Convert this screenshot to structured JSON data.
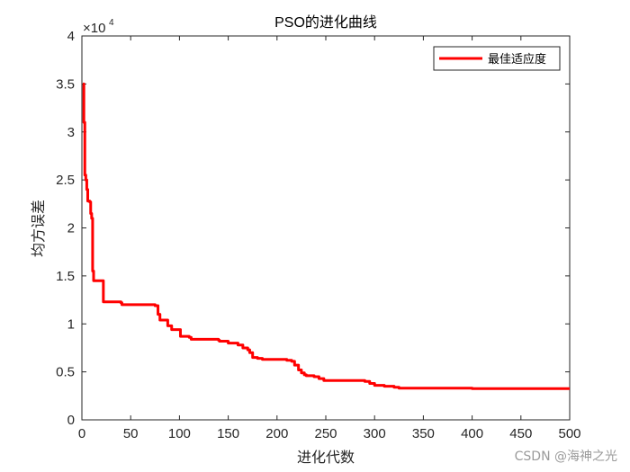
{
  "chart_data": {
    "type": "line",
    "title": "PSO的进化曲线",
    "xlabel": "进化代数",
    "ylabel": "均方误差",
    "xlim": [
      0,
      500
    ],
    "ylim": [
      0,
      40000
    ],
    "xticks": [
      0,
      50,
      100,
      150,
      200,
      250,
      300,
      350,
      400,
      450,
      500
    ],
    "yticks": [
      0,
      0.5,
      1,
      1.5,
      2,
      2.5,
      3,
      3.5,
      4
    ],
    "y_exponent_base": "×10",
    "y_exponent_power": "4",
    "legend_position": "top-right",
    "grid": false,
    "series": [
      {
        "name": "最佳适应度",
        "color": "#ff0000",
        "x": [
          1,
          2,
          3,
          4,
          5,
          6,
          8,
          9,
          10,
          11,
          12,
          12,
          18,
          22,
          23,
          40,
          41,
          45,
          75,
          78,
          80,
          84,
          88,
          92,
          100,
          101,
          110,
          112,
          122,
          140,
          141,
          150,
          160,
          165,
          170,
          172,
          175,
          180,
          185,
          210,
          215,
          218,
          222,
          225,
          228,
          230,
          238,
          243,
          248,
          252,
          290,
          295,
          300,
          310,
          320,
          325,
          330,
          400,
          500
        ],
        "y": [
          35000,
          31000,
          25500,
          25000,
          24000,
          22800,
          22700,
          21500,
          21000,
          15500,
          14500,
          14500,
          14500,
          12300,
          12300,
          12200,
          12000,
          12000,
          11900,
          11000,
          10400,
          10400,
          9800,
          9400,
          9400,
          8700,
          8600,
          8400,
          8400,
          8300,
          8200,
          8000,
          7800,
          7500,
          7300,
          7000,
          6500,
          6400,
          6300,
          6200,
          6100,
          5700,
          5200,
          4900,
          4700,
          4600,
          4500,
          4300,
          4100,
          4100,
          4000,
          3800,
          3600,
          3500,
          3400,
          3300,
          3300,
          3250,
          3250
        ]
      }
    ]
  },
  "watermark": "CSDN @海神之光"
}
